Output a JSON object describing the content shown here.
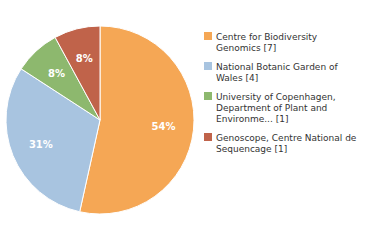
{
  "chart_data": {
    "type": "pie",
    "categories": [
      "Centre for Biodiversity\nGenomics [7]",
      "National Botanic Garden of\nWales [4]",
      "University of Copenhagen,\nDepartment of Plant and\nEnvironme... [1]",
      "Genoscope, Centre National de\nSequencage [1]"
    ],
    "values": [
      54,
      31,
      8,
      8
    ],
    "value_labels": [
      "54%",
      "31%",
      "8%",
      "8%"
    ],
    "colors": [
      "#F5A755",
      "#A8C4E0",
      "#8DB86E",
      "#C0634A"
    ],
    "data_labels": true,
    "legend": "right"
  }
}
